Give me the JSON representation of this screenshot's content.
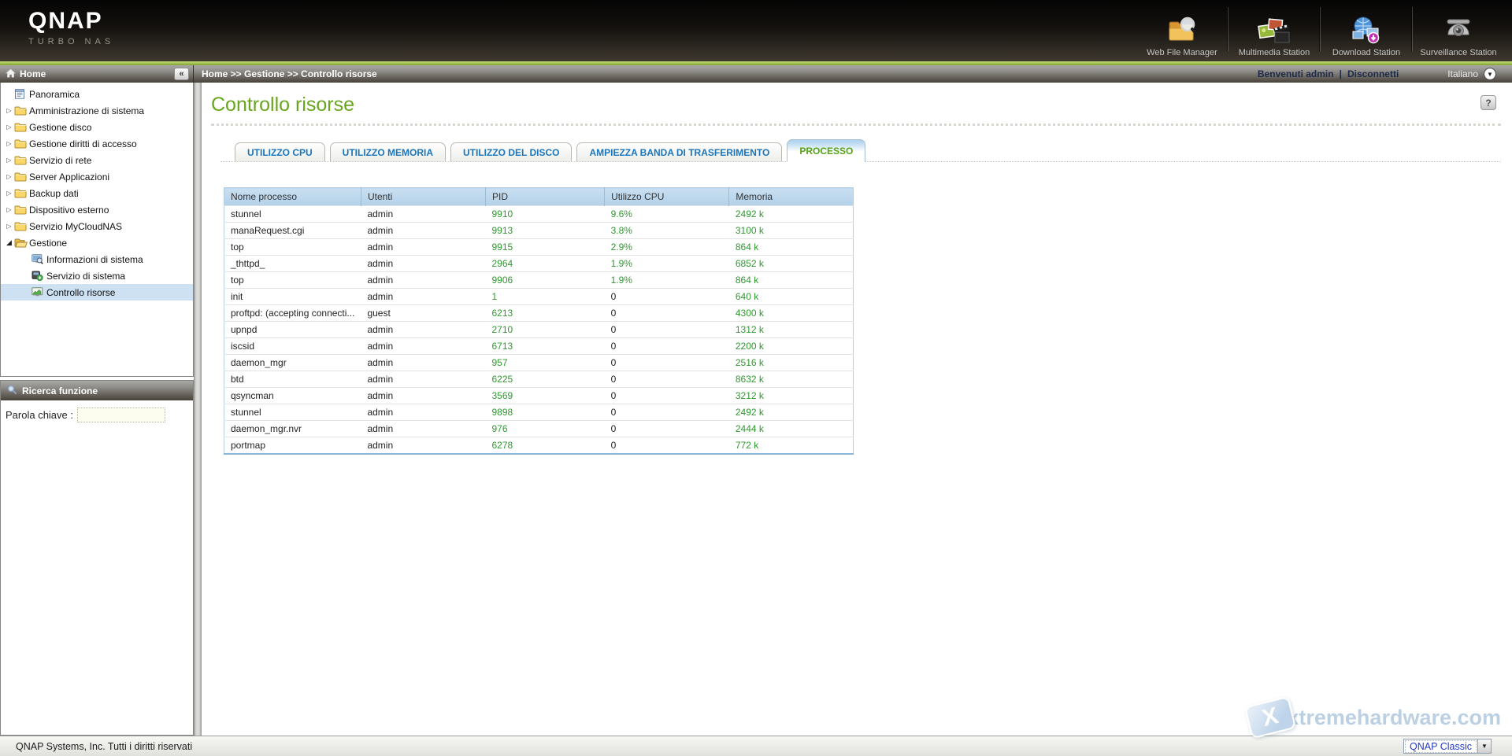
{
  "colors": {
    "accent_green": "#9cbc4a",
    "title_green": "#68a61c",
    "tab_blue": "#1b75bb",
    "tab_active_green": "#55a315",
    "value_green": "#2e992e",
    "table_header_blue": "#b2d1e9",
    "selected_row_blue": "#cde1f3"
  },
  "header": {
    "logo": "QNAP",
    "sublogo": "TURBO NAS",
    "stations": [
      {
        "label": "Web File Manager",
        "icon": "web-file-manager-icon"
      },
      {
        "label": "Multimedia Station",
        "icon": "multimedia-station-icon"
      },
      {
        "label": "Download Station",
        "icon": "download-station-icon"
      },
      {
        "label": "Surveillance Station",
        "icon": "surveillance-station-icon"
      }
    ]
  },
  "topbar": {
    "panel_title": "Home",
    "collapse_label": "«",
    "breadcrumb": "Home >> Gestione >> Controllo risorse",
    "welcome": "Benvenuti admin",
    "separator": "|",
    "logout": "Disconnetti",
    "language": "Italiano"
  },
  "sidebar": {
    "tree": [
      {
        "label": "Panoramica",
        "icon": "document-icon",
        "arrow": "none",
        "level": 0,
        "selected": false
      },
      {
        "label": "Amministrazione di sistema",
        "icon": "folder-icon",
        "arrow": "collapsed",
        "level": 0,
        "selected": false
      },
      {
        "label": "Gestione disco",
        "icon": "folder-icon",
        "arrow": "collapsed",
        "level": 0,
        "selected": false
      },
      {
        "label": "Gestione diritti di accesso",
        "icon": "folder-icon",
        "arrow": "collapsed",
        "level": 0,
        "selected": false
      },
      {
        "label": "Servizio di rete",
        "icon": "folder-icon",
        "arrow": "collapsed",
        "level": 0,
        "selected": false
      },
      {
        "label": "Server Applicazioni",
        "icon": "folder-icon",
        "arrow": "collapsed",
        "level": 0,
        "selected": false
      },
      {
        "label": "Backup dati",
        "icon": "folder-icon",
        "arrow": "collapsed",
        "level": 0,
        "selected": false
      },
      {
        "label": "Dispositivo esterno",
        "icon": "folder-icon",
        "arrow": "collapsed",
        "level": 0,
        "selected": false
      },
      {
        "label": "Servizio MyCloudNAS",
        "icon": "folder-icon",
        "arrow": "collapsed",
        "level": 0,
        "selected": false
      },
      {
        "label": "Gestione",
        "icon": "folder-open-icon",
        "arrow": "expanded",
        "level": 0,
        "selected": false
      },
      {
        "label": "Informazioni di sistema",
        "icon": "system-info-icon",
        "arrow": "none",
        "level": 1,
        "selected": false
      },
      {
        "label": "Servizio di sistema",
        "icon": "system-service-icon",
        "arrow": "none",
        "level": 1,
        "selected": false
      },
      {
        "label": "Controllo risorse",
        "icon": "resource-monitor-icon",
        "arrow": "none",
        "level": 1,
        "selected": true
      }
    ],
    "search": {
      "title": "Ricerca funzione",
      "label": "Parola chiave :",
      "value": "",
      "placeholder": ""
    }
  },
  "main": {
    "title": "Controllo risorse",
    "help_label": "?",
    "tabs": [
      {
        "label": "UTILIZZO CPU",
        "active": false
      },
      {
        "label": "UTILIZZO MEMORIA",
        "active": false
      },
      {
        "label": "UTILIZZO DEL DISCO",
        "active": false
      },
      {
        "label": "AMPIEZZA BANDA DI TRASFERIMENTO",
        "active": false
      },
      {
        "label": "PROCESSO",
        "active": true
      }
    ],
    "table": {
      "columns": [
        "Nome processo",
        "Utenti",
        "PID",
        "Utilizzo CPU",
        "Memoria"
      ],
      "rows": [
        [
          "stunnel",
          "admin",
          "9910",
          "9.6%",
          "2492 k"
        ],
        [
          "manaRequest.cgi",
          "admin",
          "9913",
          "3.8%",
          "3100 k"
        ],
        [
          "top",
          "admin",
          "9915",
          "2.9%",
          "864 k"
        ],
        [
          "_thttpd_",
          "admin",
          "2964",
          "1.9%",
          "6852 k"
        ],
        [
          "top",
          "admin",
          "9906",
          "1.9%",
          "864 k"
        ],
        [
          "init",
          "admin",
          "1",
          "0",
          "640 k"
        ],
        [
          "proftpd: (accepting connecti...",
          "guest",
          "6213",
          "0",
          "4300 k"
        ],
        [
          "upnpd",
          "admin",
          "2710",
          "0",
          "1312 k"
        ],
        [
          "iscsid",
          "admin",
          "6713",
          "0",
          "2200 k"
        ],
        [
          "daemon_mgr",
          "admin",
          "957",
          "0",
          "2516 k"
        ],
        [
          "btd",
          "admin",
          "6225",
          "0",
          "8632 k"
        ],
        [
          "qsyncman",
          "admin",
          "3569",
          "0",
          "3212 k"
        ],
        [
          "stunnel",
          "admin",
          "9898",
          "0",
          "2492 k"
        ],
        [
          "daemon_mgr.nvr",
          "admin",
          "976",
          "0",
          "2444 k"
        ],
        [
          "portmap",
          "admin",
          "6278",
          "0",
          "772 k"
        ]
      ]
    }
  },
  "footer": {
    "copyright": "QNAP Systems, Inc. Tutti i diritti riservati",
    "theme_select": "QNAP Classic"
  },
  "watermark": {
    "text": "xtremehardware.com",
    "logo_letter": "X"
  }
}
